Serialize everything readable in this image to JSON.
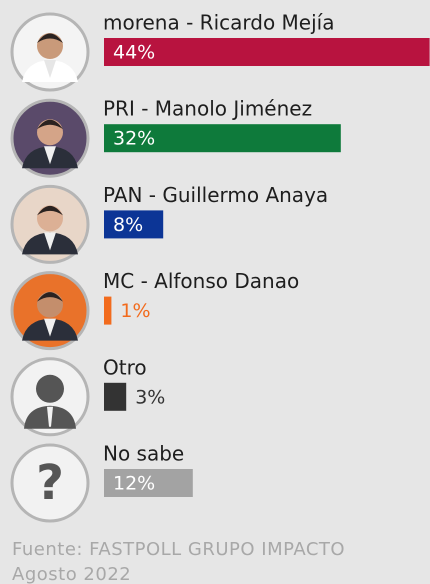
{
  "chart_data": {
    "type": "bar",
    "categories": [
      "morena - Ricardo Mejía",
      "PRI - Manolo Jiménez",
      "PAN - Guillermo Anaya",
      "MC - Alfonso Danao",
      "Otro",
      "No sabe"
    ],
    "values": [
      44,
      32,
      8,
      1,
      3,
      12
    ],
    "value_labels": [
      "44%",
      "32%",
      "8%",
      "1%",
      "3%",
      "12%"
    ],
    "colors": [
      "#b8133f",
      "#0e7a3b",
      "#0c3596",
      "#f26b1d",
      "#333333",
      "#a3a3a3"
    ],
    "source": "Fuente: FASTPOLL GRUPO IMPACTO",
    "date": "Agosto 2022"
  }
}
